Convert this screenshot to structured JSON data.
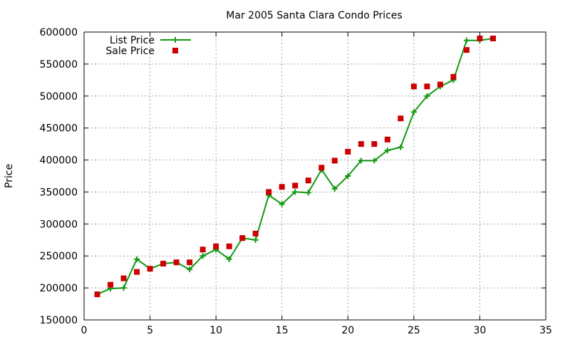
{
  "chart_data": {
    "type": "line",
    "title": "Mar 2005 Santa Clara Condo Prices",
    "xlabel": "",
    "ylabel": "Price",
    "xlim": [
      0,
      35
    ],
    "ylim": [
      150000,
      600000
    ],
    "x_ticks": [
      0,
      5,
      10,
      15,
      20,
      25,
      30,
      35
    ],
    "y_ticks": [
      150000,
      200000,
      250000,
      300000,
      350000,
      400000,
      450000,
      500000,
      550000,
      600000
    ],
    "grid": true,
    "legend_position": "top-left",
    "series": [
      {
        "name": "List Price",
        "kind": "line+cross",
        "color": "#119911",
        "x": [
          1,
          2,
          3,
          4,
          5,
          6,
          7,
          8,
          9,
          10,
          11,
          12,
          13,
          14,
          15,
          16,
          17,
          18,
          19,
          20,
          21,
          22,
          23,
          24,
          25,
          26,
          27,
          28,
          29,
          30,
          31
        ],
        "y": [
          190000,
          199000,
          200000,
          245000,
          230000,
          238000,
          240000,
          229000,
          250000,
          260000,
          245000,
          278000,
          275000,
          345000,
          331000,
          350000,
          349000,
          385000,
          355000,
          375000,
          399000,
          399000,
          415000,
          420000,
          475000,
          500000,
          515000,
          525000,
          587000,
          587000,
          590000
        ]
      },
      {
        "name": "Sale Price",
        "kind": "square",
        "color": "#cc0000",
        "x": [
          1,
          2,
          3,
          4,
          5,
          6,
          7,
          8,
          9,
          10,
          11,
          12,
          13,
          14,
          15,
          16,
          17,
          18,
          19,
          20,
          21,
          22,
          23,
          24,
          25,
          26,
          27,
          28,
          29,
          30,
          31
        ],
        "y": [
          190000,
          205000,
          215000,
          225000,
          230000,
          238000,
          240000,
          240000,
          260000,
          265000,
          265000,
          278000,
          285000,
          350000,
          358000,
          360000,
          368000,
          388000,
          399000,
          413000,
          425000,
          425000,
          432000,
          465000,
          515000,
          515000,
          518000,
          530000,
          572000,
          590000,
          590000
        ]
      }
    ]
  }
}
